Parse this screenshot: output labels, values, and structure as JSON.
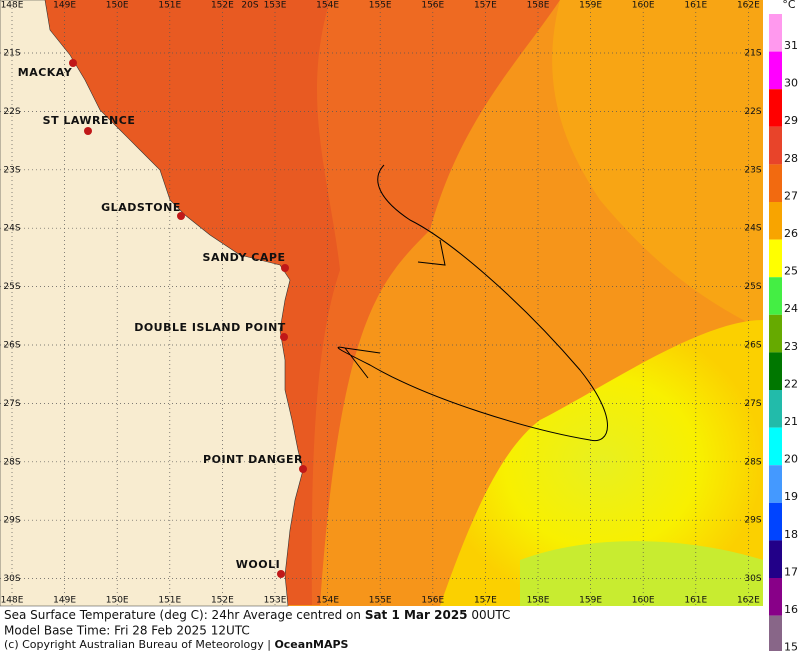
{
  "map": {
    "lon_labels": [
      "148E",
      "149E",
      "150E",
      "151E",
      "152E",
      "153E",
      "154E",
      "155E",
      "156E",
      "157E",
      "158E",
      "159E",
      "160E",
      "161E",
      "162E"
    ],
    "top_lat_label": "20S",
    "lat_labels": [
      "21S",
      "22S",
      "23S",
      "24S",
      "25S",
      "26S",
      "27S",
      "28S",
      "29S",
      "30S"
    ],
    "places": [
      "MACKAY",
      "ST LAWRENCE",
      "GLADSTONE",
      "SANDY CAPE",
      "DOUBLE ISLAND POINT",
      "POINT DANGER",
      "WOOLI"
    ]
  },
  "colorbar": {
    "unit": "°C",
    "labels": [
      "31",
      "30",
      "29",
      "28",
      "27",
      "26",
      "25",
      "24",
      "23",
      "22",
      "21",
      "20",
      "19",
      "18",
      "17",
      "16",
      "15"
    ]
  },
  "caption": {
    "line1_prefix": "Sea Surface Temperature (deg C): 24hr Average centred on ",
    "line1_date": "Sat 1 Mar 2025",
    "line1_suffix": " 00UTC",
    "line2": "Model Base Time: Fri 28 Feb 2025 12UTC",
    "line3_prefix": "(c) Copyright Australian Bureau of Meteorology | ",
    "line3_brand": "OceanMAPS"
  }
}
